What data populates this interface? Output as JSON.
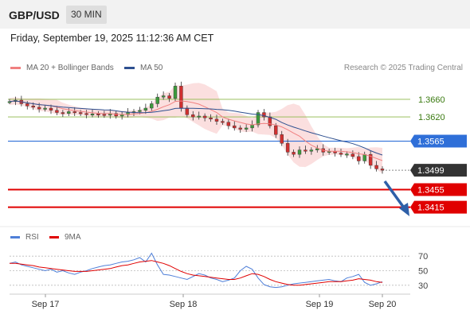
{
  "header": {
    "symbol": "GBP/USD",
    "timeframe": "30 MIN"
  },
  "datetime": "Friday, September 19, 2025 11:12:36 AM CET",
  "legend": [
    {
      "label": "MA 20 + Bollinger Bands",
      "color": "#f08080"
    },
    {
      "label": "MA 50",
      "color": "#2e5090"
    }
  ],
  "copyright": "Research © 2025 Trading Central",
  "colors": {
    "resistance": "#8db84a",
    "pivot": "#2f6fd8",
    "support": "#e00000",
    "last": "#333333",
    "arrow": "#2e5fa8",
    "candle_up": "#3c9a3c",
    "candle_down": "#d03030"
  },
  "rsi_legend": [
    {
      "label": "RSI",
      "color": "#4f7fd8"
    },
    {
      "label": "9MA",
      "color": "#e00000"
    }
  ],
  "chart_data": [
    {
      "type": "candlestick",
      "title": "GBP/USD 30 MIN",
      "ylim": [
        1.338,
        1.3705
      ],
      "levels": [
        {
          "value": 1.366,
          "label": "1.3660",
          "kind": "resistance"
        },
        {
          "value": 1.362,
          "label": "1.3620",
          "kind": "resistance"
        },
        {
          "value": 1.3565,
          "label": "1.3565",
          "kind": "pivot"
        },
        {
          "value": 1.3499,
          "label": "1.3499",
          "kind": "last"
        },
        {
          "value": 1.3455,
          "label": "1.3455",
          "kind": "support"
        },
        {
          "value": 1.3415,
          "label": "1.3415",
          "kind": "support"
        }
      ],
      "x_ticks": [
        "Sep 17",
        "Sep 18",
        "Sep 19",
        "Sep 20"
      ],
      "close_path": [
        1.3655,
        1.3658,
        1.365,
        1.3645,
        1.3642,
        1.3638,
        1.364,
        1.3635,
        1.363,
        1.3628,
        1.3632,
        1.363,
        1.3628,
        1.3625,
        1.3627,
        1.3626,
        1.3624,
        1.3628,
        1.3622,
        1.3625,
        1.363,
        1.3632,
        1.3635,
        1.364,
        1.365,
        1.3665,
        1.3668,
        1.3662,
        1.369,
        1.364,
        1.3625,
        1.362,
        1.3622,
        1.3618,
        1.3615,
        1.361,
        1.3608,
        1.36,
        1.3595,
        1.3592,
        1.3595,
        1.3602,
        1.363,
        1.362,
        1.36,
        1.358,
        1.356,
        1.354,
        1.3535,
        1.3545,
        1.3542,
        1.3545,
        1.3548,
        1.354,
        1.3542,
        1.3538,
        1.3535,
        1.3536,
        1.353,
        1.352,
        1.3535,
        1.351,
        1.3502,
        1.3499
      ]
    },
    {
      "type": "line",
      "title": "RSI",
      "ylim": [
        20,
        80
      ],
      "y_ticks": [
        "70",
        "50",
        "30"
      ],
      "series": [
        {
          "name": "RSI",
          "values": [
            60,
            62,
            58,
            56,
            54,
            52,
            50,
            52,
            48,
            50,
            47,
            45,
            48,
            50,
            53,
            55,
            57,
            58,
            60,
            62,
            63,
            65,
            68,
            62,
            74,
            58,
            45,
            44,
            42,
            40,
            38,
            42,
            46,
            44,
            40,
            38,
            35,
            37,
            40,
            50,
            56,
            52,
            40,
            31,
            28,
            27,
            28,
            30,
            32,
            33,
            34,
            35,
            36,
            37,
            38,
            36,
            35,
            40,
            42,
            45,
            34,
            30,
            32,
            35
          ]
        },
        {
          "name": "9MA",
          "values": [
            60,
            60,
            59,
            58,
            57,
            55,
            54,
            53,
            52,
            51,
            50,
            49,
            49,
            49,
            50,
            51,
            52,
            53,
            55,
            57,
            58,
            60,
            62,
            63,
            64,
            62,
            60,
            57,
            53,
            49,
            46,
            44,
            43,
            42,
            41,
            40,
            39,
            38,
            38,
            40,
            43,
            46,
            45,
            42,
            38,
            35,
            33,
            31,
            30,
            30,
            31,
            32,
            33,
            34,
            35,
            35,
            35,
            36,
            37,
            39,
            38,
            37,
            35,
            34
          ]
        }
      ]
    }
  ]
}
